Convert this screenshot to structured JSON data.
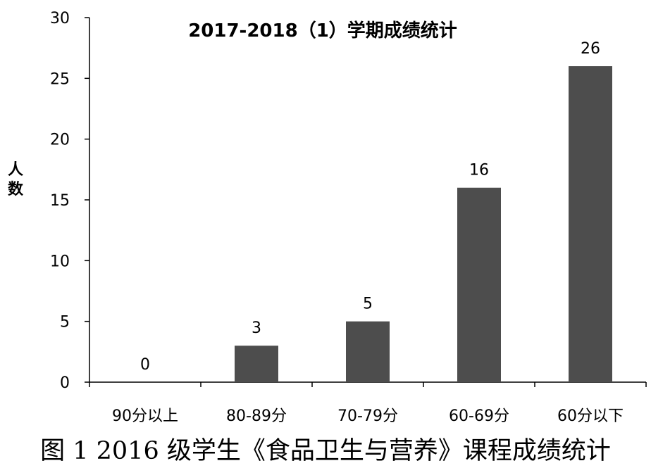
{
  "caption": "图 1 2016 级学生《食品卫生与营养》课程成绩统计",
  "colors": {
    "bar": "#4d4d4d",
    "axis": "#000000",
    "text": "#000000"
  },
  "chart_data": {
    "type": "bar",
    "title": "2017-2018（1）学期成绩统计",
    "xlabel": "",
    "ylabel": "人数",
    "categories": [
      "90分以上",
      "80-89分",
      "70-79分",
      "60-69分",
      "60分以下"
    ],
    "values": [
      0,
      3,
      5,
      16,
      26
    ],
    "data_labels": [
      "0",
      "3",
      "5",
      "16",
      "26"
    ],
    "ylim": [
      0,
      30
    ],
    "yticks": [
      0,
      5,
      10,
      15,
      20,
      25,
      30
    ],
    "grid": false,
    "legend": "none"
  }
}
